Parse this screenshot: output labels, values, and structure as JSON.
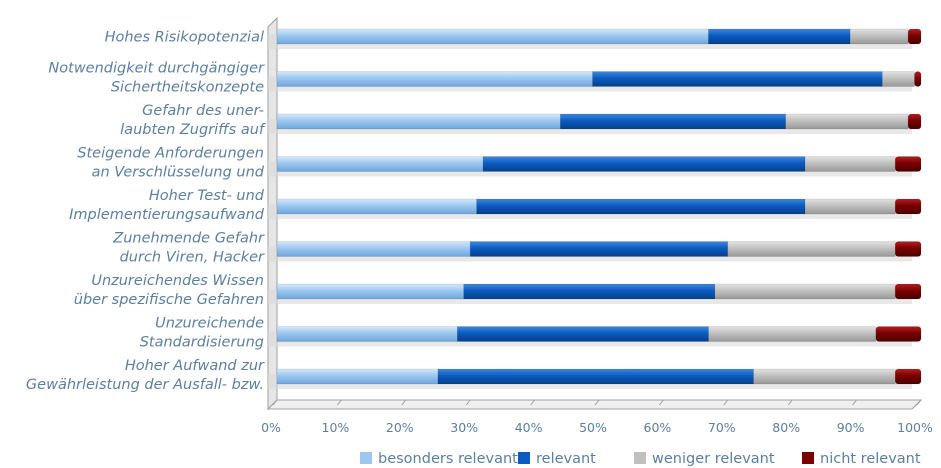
{
  "chart_data": {
    "type": "bar",
    "orientation": "horizontal",
    "stacked": true,
    "categories": [
      [
        "Hohes Risikopotenzial"
      ],
      [
        "Notwendigkeit durchgängiger",
        "Sichertheitskonzepte"
      ],
      [
        "Gefahr des uner-",
        "laubten Zugriffs auf"
      ],
      [
        "Steigende  Anforderungen",
        "an Verschlüsselung und"
      ],
      [
        "Hoher Test- und",
        "Implementierungsaufwand"
      ],
      [
        "Zunehmende Gefahr",
        "durch Viren, Hacker"
      ],
      [
        "Unzureichendes Wissen",
        "über spezifische Gefahren"
      ],
      [
        "Unzureichende",
        "Standardisierung"
      ],
      [
        "Hoher Aufwand zur",
        "Gewährleistung der Ausfall- bzw."
      ]
    ],
    "series": [
      {
        "name": "besonders relevant",
        "color": "#9dc7ef",
        "values": [
          67,
          49,
          44,
          32,
          31,
          30,
          29,
          28,
          25
        ]
      },
      {
        "name": "relevant",
        "color": "#0a5bc0",
        "values": [
          22,
          45,
          35,
          50,
          51,
          40,
          39,
          39,
          49
        ]
      },
      {
        "name": "weniger relevant",
        "color": "#c0c0c0",
        "values": [
          9,
          5,
          19,
          14,
          14,
          26,
          28,
          26,
          22
        ]
      },
      {
        "name": "nicht relevant",
        "color": "#7a0000",
        "values": [
          2,
          1,
          2,
          4,
          4,
          4,
          4,
          7,
          4
        ]
      }
    ],
    "xlim": [
      0,
      100
    ],
    "xticks": [
      "0%",
      "10%",
      "20%",
      "30%",
      "40%",
      "50%",
      "60%",
      "70%",
      "80%",
      "90%",
      "100%"
    ],
    "grid": false,
    "legend_position": "bottom-right"
  }
}
